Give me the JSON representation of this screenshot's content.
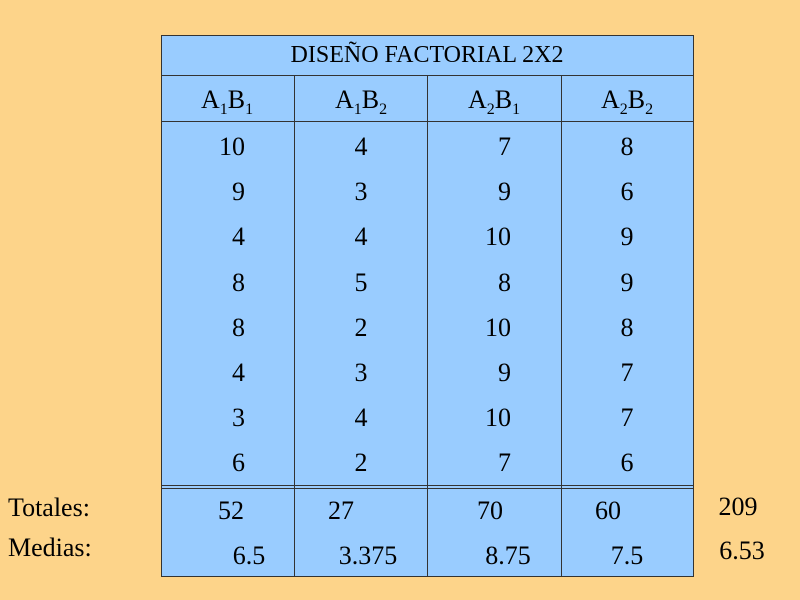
{
  "table": {
    "title": "DISEÑO FACTORIAL 2X2",
    "headers": [
      [
        "A",
        "1",
        "B",
        "1"
      ],
      [
        "A",
        "1",
        "B",
        "2"
      ],
      [
        "A",
        "2",
        "B",
        "1"
      ],
      [
        "A",
        "2",
        "B",
        "2"
      ]
    ],
    "rows": [
      [
        10,
        4,
        7,
        8
      ],
      [
        9,
        3,
        9,
        6
      ],
      [
        4,
        4,
        10,
        9
      ],
      [
        8,
        5,
        8,
        9
      ],
      [
        8,
        2,
        10,
        8
      ],
      [
        4,
        3,
        9,
        7
      ],
      [
        3,
        4,
        10,
        7
      ],
      [
        6,
        2,
        7,
        6
      ]
    ],
    "totals_label": "Totales:",
    "totals": [
      52,
      27,
      70,
      60
    ],
    "grand_total": 209,
    "means_label": "Medias:",
    "means": [
      6.5,
      3.375,
      8.75,
      7.5
    ],
    "grand_mean": 6.53
  }
}
